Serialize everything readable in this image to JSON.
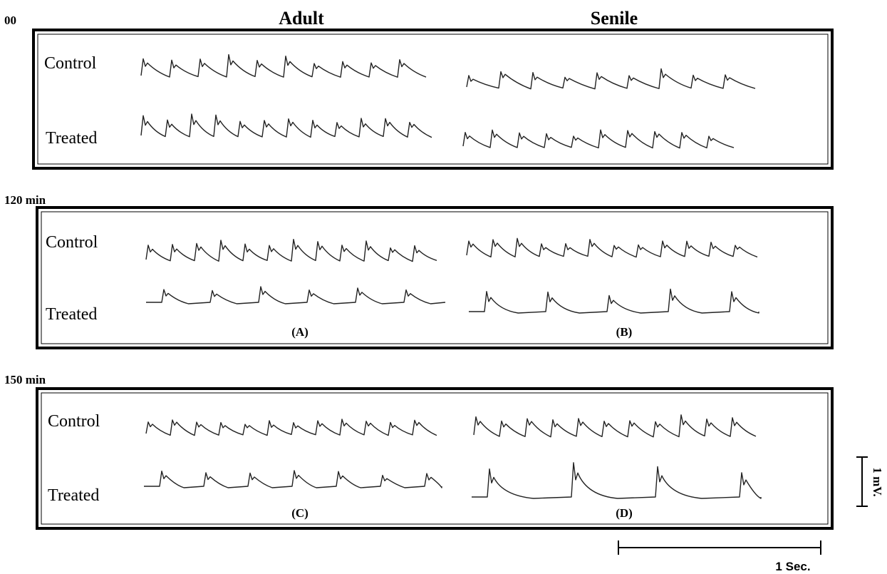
{
  "column_headers": [
    "Adult",
    "Senile"
  ],
  "panels": [
    {
      "time": "00",
      "rows": [
        "Control",
        "Treated"
      ]
    },
    {
      "time": "120 min",
      "rows": [
        "Control",
        "Treated"
      ],
      "labels": [
        "(A)",
        "(B)"
      ]
    },
    {
      "time": "150 min",
      "rows": [
        "Control",
        "Treated"
      ],
      "labels": [
        "(C)",
        "(D)"
      ]
    }
  ],
  "scale_bars": {
    "voltage": "1 mV.",
    "time": "1 Sec."
  }
}
